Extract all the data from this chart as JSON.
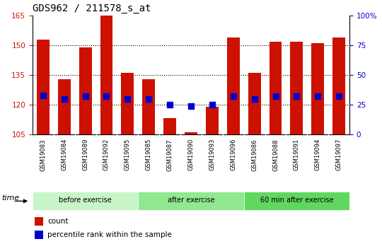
{
  "title": "GDS962 / 211578_s_at",
  "samples": [
    "GSM19083",
    "GSM19084",
    "GSM19089",
    "GSM19092",
    "GSM19095",
    "GSM19085",
    "GSM19087",
    "GSM19090",
    "GSM19093",
    "GSM19096",
    "GSM19086",
    "GSM19088",
    "GSM19091",
    "GSM19094",
    "GSM19097"
  ],
  "counts": [
    153,
    133,
    149,
    165,
    136,
    133,
    113,
    106,
    119,
    154,
    136,
    152,
    152,
    151,
    154
  ],
  "percentiles": [
    33,
    30,
    32,
    32,
    30,
    30,
    25,
    24,
    25,
    32,
    30,
    32,
    32,
    32,
    32
  ],
  "groups": [
    {
      "label": "before exercise",
      "start": 0,
      "end": 5,
      "color": "#c8f5c8"
    },
    {
      "label": "after exercise",
      "start": 5,
      "end": 10,
      "color": "#90e890"
    },
    {
      "label": "60 min after exercise",
      "start": 10,
      "end": 15,
      "color": "#60d860"
    }
  ],
  "bar_color": "#cc1100",
  "dot_color": "#0000cc",
  "ylim_left": [
    105,
    165
  ],
  "ylim_right": [
    0,
    100
  ],
  "yticks_left": [
    105,
    120,
    135,
    150,
    165
  ],
  "yticks_right": [
    0,
    25,
    50,
    75,
    100
  ],
  "grid_yticks": [
    120,
    135,
    150
  ],
  "bar_width": 0.6,
  "dot_size": 28,
  "bg_color": "#ffffff",
  "tick_label_color_left": "#cc1100",
  "tick_label_color_right": "#0000cc",
  "title_fontsize": 10,
  "ticklabel_bg": "#d0d0d0",
  "time_label": "time",
  "legend_count": "count",
  "legend_percentile": "percentile rank within the sample"
}
